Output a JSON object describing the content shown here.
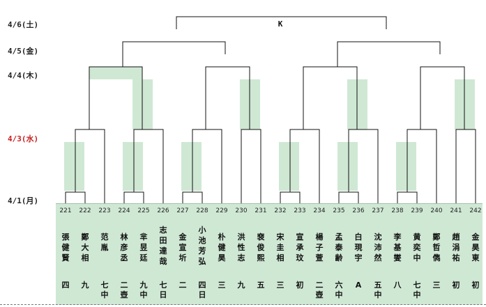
{
  "dates": [
    {
      "label": "4/6(土)",
      "highlight": false
    },
    {
      "label": "4/5(金)",
      "highlight": false
    },
    {
      "label": "4/4(木)",
      "highlight": false
    },
    {
      "label": "4/3(水)",
      "highlight": true
    },
    {
      "label": "4/1(月)",
      "highlight": false
    }
  ],
  "final_label": "K",
  "colors": {
    "line": "#111111",
    "highlight": "#cfe8d4",
    "date_red": "#c81e1e"
  },
  "players": [
    {
      "num": "221",
      "name": "張健賢",
      "rank": "四"
    },
    {
      "num": "222",
      "name": "鄭大相",
      "rank": "九"
    },
    {
      "num": "223",
      "name": "范胤",
      "rank": "七中"
    },
    {
      "num": "224",
      "name": "林彦丞",
      "rank": "二壺"
    },
    {
      "num": "225",
      "name": "芈昱廷",
      "rank": "九中"
    },
    {
      "num": "226",
      "name": "志田達哉",
      "rank": "七日"
    },
    {
      "num": "227",
      "name": "金宣圻",
      "rank": "二"
    },
    {
      "num": "228",
      "name": "小池芳弘",
      "rank": "四日"
    },
    {
      "num": "229",
      "name": "朴健昊",
      "rank": "三"
    },
    {
      "num": "230",
      "name": "洪性志",
      "rank": "九"
    },
    {
      "num": "231",
      "name": "裵俊熙",
      "rank": "五"
    },
    {
      "num": "232",
      "name": "宋圭相",
      "rank": "三"
    },
    {
      "num": "233",
      "name": "宣承玟",
      "rank": "初"
    },
    {
      "num": "234",
      "name": "楊子萱",
      "rank": "二壺"
    },
    {
      "num": "235",
      "name": "孟泰齢",
      "rank": "六中"
    },
    {
      "num": "236",
      "name": "白現宇",
      "rank": "A"
    },
    {
      "num": "237",
      "name": "沈沛然",
      "rank": "五中"
    },
    {
      "num": "238",
      "name": "李基燮",
      "rank": "八"
    },
    {
      "num": "239",
      "name": "黄奕中",
      "rank": "七中"
    },
    {
      "num": "240",
      "name": "鄭哲儁",
      "rank": "三"
    },
    {
      "num": "241",
      "name": "趙涓祐",
      "rank": "初"
    },
    {
      "num": "242",
      "name": "金昊東",
      "rank": "初"
    }
  ]
}
